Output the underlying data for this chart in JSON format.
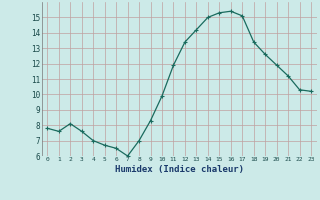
{
  "x": [
    0,
    1,
    2,
    3,
    4,
    5,
    6,
    7,
    8,
    9,
    10,
    11,
    12,
    13,
    14,
    15,
    16,
    17,
    18,
    19,
    20,
    21,
    22,
    23
  ],
  "y": [
    7.8,
    7.6,
    8.1,
    7.6,
    7.0,
    6.7,
    6.5,
    6.0,
    7.0,
    8.3,
    9.9,
    11.9,
    13.4,
    14.2,
    15.0,
    15.3,
    15.4,
    15.1,
    13.4,
    12.6,
    11.9,
    11.2,
    10.3,
    10.2
  ],
  "line_color": "#1a6b5e",
  "marker": "+",
  "bg_color": "#cceae8",
  "grid_color": "#c0a0a0",
  "xlabel": "Humidex (Indice chaleur)",
  "xlabel_color": "#1a3a6b",
  "tick_color": "#1a4a4a",
  "ylim": [
    6,
    16
  ],
  "yticks": [
    6,
    7,
    8,
    9,
    10,
    11,
    12,
    13,
    14,
    15
  ],
  "xticks": [
    0,
    1,
    2,
    3,
    4,
    5,
    6,
    7,
    8,
    9,
    10,
    11,
    12,
    13,
    14,
    15,
    16,
    17,
    18,
    19,
    20,
    21,
    22,
    23
  ],
  "xlim": [
    -0.5,
    23.5
  ]
}
